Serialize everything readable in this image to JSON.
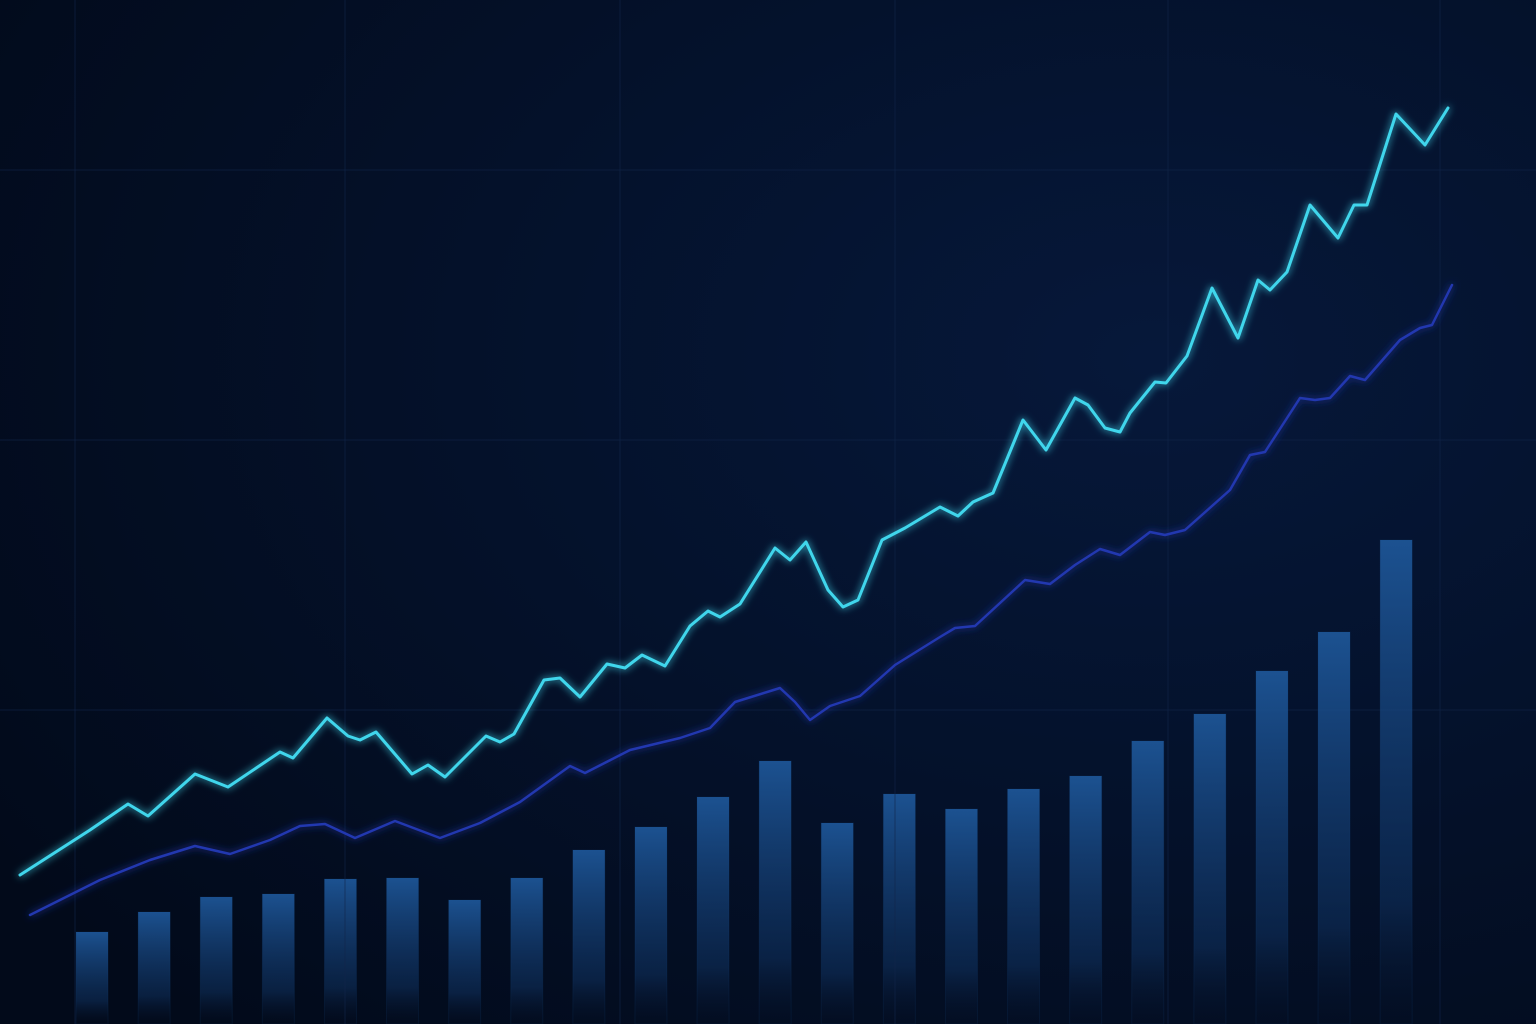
{
  "chart_data": [
    {
      "type": "bar",
      "categories": [
        null,
        null,
        null,
        null,
        null,
        null,
        null,
        null,
        null,
        null,
        null,
        null,
        null,
        null,
        null,
        null,
        null,
        null,
        null,
        null,
        null,
        null
      ],
      "values": [
        92,
        112,
        127,
        130,
        145,
        146,
        124,
        146,
        174,
        197,
        227,
        263,
        201,
        230,
        215,
        235,
        248,
        283,
        310,
        353,
        392,
        484
      ],
      "color": "#1b4f8f",
      "ylim": [
        0,
        1024
      ],
      "yticks": [
        314,
        584,
        854
      ],
      "grid": true
    },
    {
      "type": "line",
      "xlim": [
        0,
        1536
      ],
      "ylim": [
        0,
        1024
      ],
      "xticks": [
        75,
        345,
        620,
        895,
        1168,
        1440
      ],
      "grid": true,
      "series": [
        {
          "color": "#3fd6ec",
          "x": [
            20,
            90,
            128,
            148,
            195,
            228,
            280,
            293,
            327,
            348,
            360,
            376,
            412,
            428,
            445,
            460,
            486,
            500,
            514,
            544,
            560,
            580,
            607,
            625,
            642,
            665,
            690,
            708,
            720,
            740,
            775,
            790,
            806,
            828,
            843,
            858,
            882,
            905,
            940,
            958,
            973,
            993,
            1023,
            1046,
            1075,
            1088,
            1105,
            1120,
            1130,
            1155,
            1166,
            1187,
            1212,
            1238,
            1258,
            1270,
            1287,
            1310,
            1338,
            1354,
            1367,
            1396,
            1425,
            1448
          ],
          "values": [
            149,
            194,
            220,
            208,
            250,
            237,
            272,
            266,
            306,
            288,
            284,
            292,
            250,
            259,
            247,
            262,
            288,
            282,
            290,
            344,
            346,
            327,
            360,
            356,
            369,
            358,
            398,
            413,
            407,
            420,
            476,
            464,
            482,
            434,
            417,
            424,
            484,
            496,
            517,
            508,
            522,
            531,
            604,
            574,
            626,
            619,
            596,
            592,
            611,
            642,
            641,
            668,
            736,
            686,
            744,
            734,
            752,
            819,
            786,
            819,
            819,
            910,
            879,
            916
          ]
        },
        {
          "color": "#2238b0",
          "x": [
            30,
            100,
            150,
            195,
            230,
            270,
            300,
            325,
            355,
            395,
            440,
            480,
            520,
            570,
            585,
            630,
            680,
            710,
            735,
            780,
            795,
            810,
            830,
            860,
            895,
            940,
            955,
            975,
            1025,
            1050,
            1075,
            1100,
            1120,
            1150,
            1165,
            1185,
            1230,
            1250,
            1265,
            1300,
            1315,
            1330,
            1350,
            1365,
            1400,
            1420,
            1432,
            1452
          ],
          "values": [
            109,
            144,
            164,
            178,
            170,
            184,
            198,
            200,
            186,
            203,
            186,
            201,
            222,
            258,
            251,
            274,
            286,
            296,
            322,
            336,
            322,
            304,
            318,
            328,
            359,
            387,
            396,
            398,
            444,
            440,
            459,
            475,
            469,
            492,
            489,
            494,
            534,
            569,
            572,
            626,
            624,
            626,
            648,
            644,
            684,
            696,
            699,
            739
          ]
        }
      ]
    }
  ]
}
